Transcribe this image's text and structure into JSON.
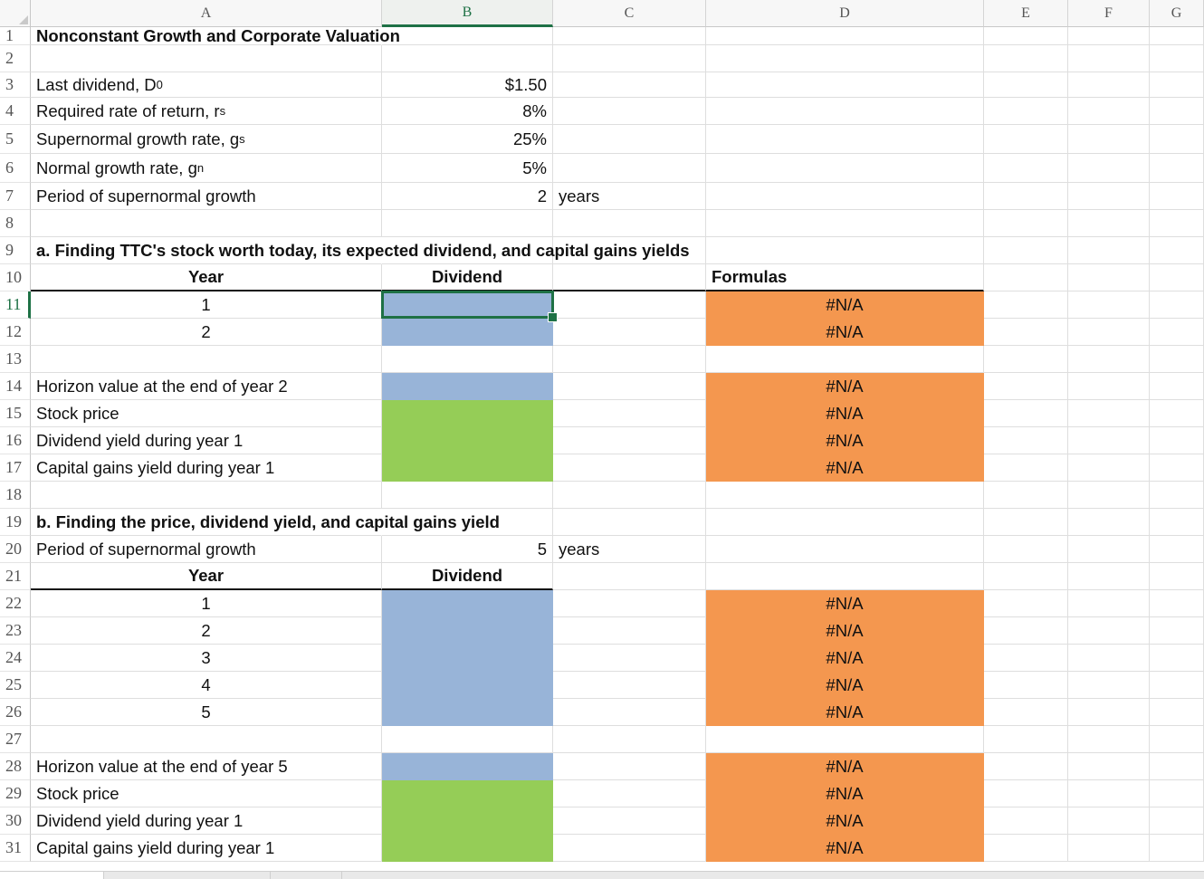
{
  "columns": [
    {
      "key": "A",
      "label": "A"
    },
    {
      "key": "B",
      "label": "B"
    },
    {
      "key": "C",
      "label": "C"
    },
    {
      "key": "D",
      "label": "D"
    },
    {
      "key": "E",
      "label": "E"
    },
    {
      "key": "F",
      "label": "F"
    },
    {
      "key": "G",
      "label": "G"
    }
  ],
  "selected": {
    "col": "B",
    "row": 11
  },
  "colors": {
    "accent": "#1e7145",
    "input_fill": "#98b4d8",
    "output_fill": "#95cd57",
    "formula_fill": "#f4974f"
  },
  "rows": [
    {
      "n": 1,
      "cells": [
        {
          "col": "A",
          "text": "Nonconstant Growth and Corporate Valuation",
          "bold": true,
          "overflow": true
        }
      ]
    },
    {
      "n": 2,
      "cells": []
    },
    {
      "n": 3,
      "cells": [
        {
          "col": "A",
          "text": "Last dividend, D",
          "sub": "0"
        },
        {
          "col": "B",
          "text": "$1.50",
          "align": "r"
        }
      ]
    },
    {
      "n": 4,
      "cells": [
        {
          "col": "A",
          "text": "Required rate of return, r",
          "sub": "s"
        },
        {
          "col": "B",
          "text": "8%",
          "align": "r"
        }
      ]
    },
    {
      "n": 5,
      "cells": [
        {
          "col": "A",
          "text": "Supernormal growth rate, g",
          "sub": "s"
        },
        {
          "col": "B",
          "text": "25%",
          "align": "r"
        }
      ]
    },
    {
      "n": 6,
      "cells": [
        {
          "col": "A",
          "text": "Normal growth rate, g",
          "sub": "n"
        },
        {
          "col": "B",
          "text": "5%",
          "align": "r"
        }
      ]
    },
    {
      "n": 7,
      "cells": [
        {
          "col": "A",
          "text": "Period of supernormal growth"
        },
        {
          "col": "B",
          "text": "2",
          "align": "r"
        },
        {
          "col": "C",
          "text": "years"
        }
      ]
    },
    {
      "n": 8,
      "cells": []
    },
    {
      "n": 9,
      "cells": [
        {
          "col": "A",
          "text": "a. Finding TTC's stock worth today, its expected dividend, and capital gains yields",
          "bold": true,
          "overflow": true
        }
      ]
    },
    {
      "n": 10,
      "cells": [
        {
          "col": "A",
          "text": "Year",
          "bold": true,
          "align": "c",
          "ul": true
        },
        {
          "col": "B",
          "text": "Dividend",
          "bold": true,
          "align": "c",
          "ul": true
        },
        {
          "col": "C",
          "text": "",
          "ul": true
        },
        {
          "col": "D",
          "text": "Formulas",
          "bold": true,
          "ul": true
        }
      ]
    },
    {
      "n": 11,
      "cells": [
        {
          "col": "A",
          "text": "1",
          "align": "c"
        },
        {
          "col": "B",
          "text": "",
          "fill": "blue"
        },
        {
          "col": "D",
          "text": "#N/A",
          "align": "c",
          "fill": "orange"
        }
      ]
    },
    {
      "n": 12,
      "cells": [
        {
          "col": "A",
          "text": "2",
          "align": "c"
        },
        {
          "col": "B",
          "text": "",
          "fill": "blue"
        },
        {
          "col": "D",
          "text": "#N/A",
          "align": "c",
          "fill": "orange"
        }
      ]
    },
    {
      "n": 13,
      "cells": []
    },
    {
      "n": 14,
      "cells": [
        {
          "col": "A",
          "text": "Horizon value at the end of year 2"
        },
        {
          "col": "B",
          "text": "",
          "fill": "blue"
        },
        {
          "col": "D",
          "text": "#N/A",
          "align": "c",
          "fill": "orange"
        }
      ]
    },
    {
      "n": 15,
      "cells": [
        {
          "col": "A",
          "text": "Stock price"
        },
        {
          "col": "B",
          "text": "",
          "fill": "green"
        },
        {
          "col": "D",
          "text": "#N/A",
          "align": "c",
          "fill": "orange"
        }
      ]
    },
    {
      "n": 16,
      "cells": [
        {
          "col": "A",
          "text": "Dividend yield during year 1"
        },
        {
          "col": "B",
          "text": "",
          "fill": "green"
        },
        {
          "col": "D",
          "text": "#N/A",
          "align": "c",
          "fill": "orange"
        }
      ]
    },
    {
      "n": 17,
      "cells": [
        {
          "col": "A",
          "text": "Capital gains yield during year 1"
        },
        {
          "col": "B",
          "text": "",
          "fill": "green"
        },
        {
          "col": "D",
          "text": "#N/A",
          "align": "c",
          "fill": "orange"
        }
      ]
    },
    {
      "n": 18,
      "cells": []
    },
    {
      "n": 19,
      "cells": [
        {
          "col": "A",
          "text": "b. Finding the price, dividend yield, and capital gains yield",
          "bold": true,
          "overflow": true
        }
      ]
    },
    {
      "n": 20,
      "cells": [
        {
          "col": "A",
          "text": "Period of supernormal growth"
        },
        {
          "col": "B",
          "text": "5",
          "align": "r"
        },
        {
          "col": "C",
          "text": "years"
        }
      ]
    },
    {
      "n": 21,
      "cells": [
        {
          "col": "A",
          "text": "Year",
          "bold": true,
          "align": "c",
          "ul": true
        },
        {
          "col": "B",
          "text": "Dividend",
          "bold": true,
          "align": "c",
          "ul": true
        }
      ]
    },
    {
      "n": 22,
      "cells": [
        {
          "col": "A",
          "text": "1",
          "align": "c"
        },
        {
          "col": "B",
          "text": "",
          "fill": "blue"
        },
        {
          "col": "D",
          "text": "#N/A",
          "align": "c",
          "fill": "orange"
        }
      ]
    },
    {
      "n": 23,
      "cells": [
        {
          "col": "A",
          "text": "2",
          "align": "c"
        },
        {
          "col": "B",
          "text": "",
          "fill": "blue"
        },
        {
          "col": "D",
          "text": "#N/A",
          "align": "c",
          "fill": "orange"
        }
      ]
    },
    {
      "n": 24,
      "cells": [
        {
          "col": "A",
          "text": "3",
          "align": "c"
        },
        {
          "col": "B",
          "text": "",
          "fill": "blue"
        },
        {
          "col": "D",
          "text": "#N/A",
          "align": "c",
          "fill": "orange"
        }
      ]
    },
    {
      "n": 25,
      "cells": [
        {
          "col": "A",
          "text": "4",
          "align": "c"
        },
        {
          "col": "B",
          "text": "",
          "fill": "blue"
        },
        {
          "col": "D",
          "text": "#N/A",
          "align": "c",
          "fill": "orange"
        }
      ]
    },
    {
      "n": 26,
      "cells": [
        {
          "col": "A",
          "text": "5",
          "align": "c"
        },
        {
          "col": "B",
          "text": "",
          "fill": "blue"
        },
        {
          "col": "D",
          "text": "#N/A",
          "align": "c",
          "fill": "orange"
        }
      ]
    },
    {
      "n": 27,
      "cells": []
    },
    {
      "n": 28,
      "cells": [
        {
          "col": "A",
          "text": "Horizon value at the end of year 5"
        },
        {
          "col": "B",
          "text": "",
          "fill": "blue"
        },
        {
          "col": "D",
          "text": "#N/A",
          "align": "c",
          "fill": "orange"
        }
      ]
    },
    {
      "n": 29,
      "cells": [
        {
          "col": "A",
          "text": "Stock price"
        },
        {
          "col": "B",
          "text": "",
          "fill": "green"
        },
        {
          "col": "D",
          "text": "#N/A",
          "align": "c",
          "fill": "orange"
        }
      ]
    },
    {
      "n": 30,
      "cells": [
        {
          "col": "A",
          "text": "Dividend yield during year 1"
        },
        {
          "col": "B",
          "text": "",
          "fill": "green"
        },
        {
          "col": "D",
          "text": "#N/A",
          "align": "c",
          "fill": "orange"
        }
      ]
    },
    {
      "n": 31,
      "cells": [
        {
          "col": "A",
          "text": "Capital gains yield during year 1"
        },
        {
          "col": "B",
          "text": "",
          "fill": "green"
        },
        {
          "col": "D",
          "text": "#N/A",
          "align": "c",
          "fill": "orange"
        }
      ]
    }
  ]
}
